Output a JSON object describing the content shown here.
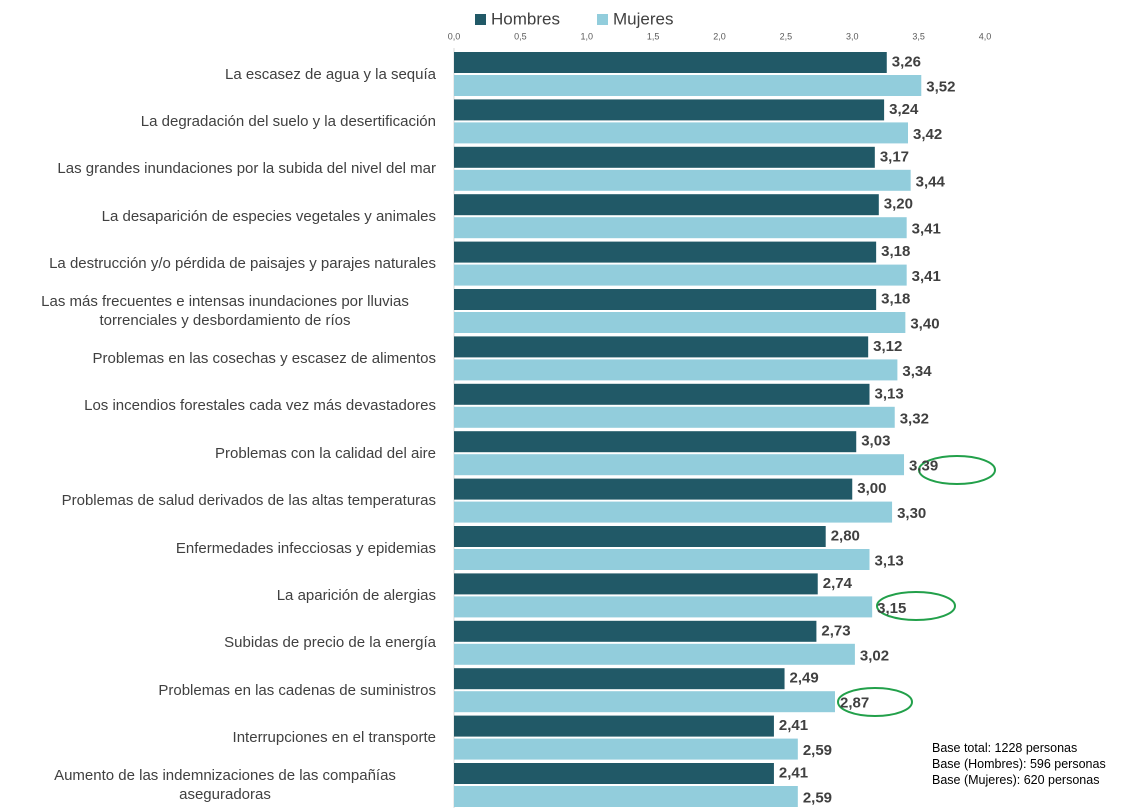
{
  "chart_data": {
    "type": "bar",
    "orientation": "horizontal",
    "legend": "top",
    "categories": [
      "La escasez de agua y la sequía",
      "La degradación del suelo y la desertificación",
      "Las grandes inundaciones por la subida del nivel del mar",
      "La desaparición de especies vegetales y animales",
      "La destrucción y/o pérdida de paisajes y parajes naturales",
      "Las más frecuentes e intensas inundaciones por lluvias torrenciales y desbordamiento de ríos",
      "Problemas en las cosechas y escasez de alimentos",
      "Los incendios forestales cada vez más devastadores",
      "Problemas con la calidad del aire",
      "Problemas de salud derivados de las altas temperaturas",
      "Enfermedades infecciosas y epidemias",
      "La aparición de alergias",
      "Subidas de precio de la energía",
      "Problemas en las cadenas de suministros",
      "Interrupciones en el transporte",
      "Aumento de las indemnizaciones de las compañías aseguradoras"
    ],
    "series": [
      {
        "name": "Hombres",
        "color": "#215967",
        "values": [
          3.26,
          3.24,
          3.17,
          3.2,
          3.18,
          3.18,
          3.12,
          3.13,
          3.03,
          3.0,
          2.8,
          2.74,
          2.73,
          2.49,
          2.41,
          2.41
        ],
        "value_labels": [
          "3,26",
          "3,24",
          "3,17",
          "3,20",
          "3,18",
          "3,18",
          "3,12",
          "3,13",
          "3,03",
          "3,00",
          "2,80",
          "2,74",
          "2,73",
          "2,49",
          "2,41",
          "2,41"
        ]
      },
      {
        "name": "Mujeres",
        "color": "#92cddc",
        "values": [
          3.52,
          3.42,
          3.44,
          3.41,
          3.41,
          3.4,
          3.34,
          3.32,
          3.39,
          3.3,
          3.13,
          3.15,
          3.02,
          2.87,
          2.59,
          2.59
        ],
        "value_labels": [
          "3,52",
          "3,42",
          "3,44",
          "3,41",
          "3,41",
          "3,40",
          "3,34",
          "3,32",
          "3,39",
          "3,30",
          "3,13",
          "3,15",
          "3,02",
          "2,87",
          "2,59",
          "2,59"
        ]
      }
    ],
    "xlim": [
      0,
      4
    ],
    "xticks": [
      {
        "value": 0,
        "label": "0,0"
      },
      {
        "value": 0.5,
        "label": "0,5"
      },
      {
        "value": 1,
        "label": "1,0"
      },
      {
        "value": 1.5,
        "label": "1,5"
      },
      {
        "value": 2,
        "label": "2,0"
      },
      {
        "value": 2.5,
        "label": "2,5"
      },
      {
        "value": 3,
        "label": "3,0"
      },
      {
        "value": 3.5,
        "label": "3,5"
      },
      {
        "value": 4,
        "label": "4,0"
      }
    ],
    "notes": [
      "Base total: 1228 personas",
      "Base (Hombres): 596 personas",
      "Base (Mujeres): 620 personas"
    ]
  }
}
